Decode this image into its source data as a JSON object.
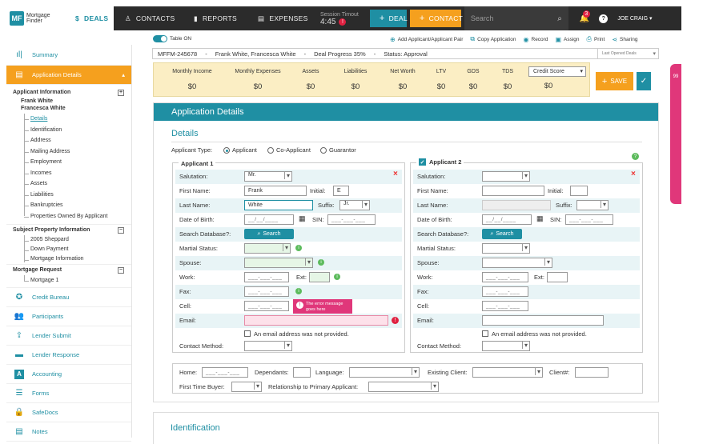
{
  "nav": {
    "brand_abbr": "MF",
    "brand_name_1": "Mortgage",
    "brand_name_2": "Finder",
    "tabs": [
      {
        "label": "DEALS",
        "icon": "dollar-icon"
      },
      {
        "label": "CONTACTS",
        "icon": "person-icon"
      },
      {
        "label": "REPORTS",
        "icon": "bar-chart-icon"
      },
      {
        "label": "EXPENSES",
        "icon": "document-icon"
      }
    ],
    "session_label": "Session Timout",
    "session_time": "4:45",
    "session_alert": "!",
    "deal_button": "DEAL",
    "contact_button": "CONTACT",
    "search_placeholder": "Search",
    "notif_count": "3",
    "user_name": "JOE CRAIG",
    "accent": "#1f8fa3",
    "orange": "#f5a01e"
  },
  "toolbar": {
    "table_label": "Table ON",
    "actions": [
      {
        "label": "Add Applicant/Applicant Pair",
        "icon": "add-person-icon"
      },
      {
        "label": "Copy Application",
        "icon": "copy-icon"
      },
      {
        "label": "Record",
        "icon": "record-icon"
      },
      {
        "label": "Assign",
        "icon": "assign-icon"
      },
      {
        "label": "Print",
        "icon": "print-icon"
      },
      {
        "label": "Sharing",
        "icon": "share-icon"
      }
    ]
  },
  "deal": {
    "id": "MFFM-245678",
    "sep": "-",
    "names": "Frank White, Francesca White",
    "progress": "Deal Progress 35%",
    "status": "Status: Approval",
    "last_opened": "Last Opened Deals"
  },
  "metrics": {
    "items": [
      {
        "label": "Monthly Income",
        "value": "$0"
      },
      {
        "label": "Monthly Expenses",
        "value": "$0"
      },
      {
        "label": "Assets",
        "value": "$0"
      },
      {
        "label": "Liabilities",
        "value": "$0"
      },
      {
        "label": "Net Worth",
        "value": "$0"
      },
      {
        "label": "LTV",
        "value": "$0"
      },
      {
        "label": "GDS",
        "value": "$0"
      },
      {
        "label": "TDS",
        "value": "$0"
      },
      {
        "label": "Credit Score",
        "value": "$0"
      }
    ],
    "save": "SAVE",
    "side_tab": "99"
  },
  "sidebar": {
    "summary": "Summary",
    "app_details": "Application Details",
    "applicant_info": "Applicant Information",
    "applicant_names_1": "Frank White",
    "applicant_names_2": "Francesca White",
    "applicant_subs": [
      "Details",
      "Identification",
      "Address",
      "Mailing Address",
      "Employment",
      "Incomes",
      "Assets",
      "Liabilities",
      "Bankruptcies",
      "Properties Owned By Applicant"
    ],
    "subject_property": "Subject Property Information",
    "property_subs": [
      "2005 Sheppard",
      "Down Payment",
      "Mortgage Information"
    ],
    "mortgage_request": "Mortgage Request",
    "mortgage_subs": [
      "Mortgage 1"
    ],
    "items": [
      {
        "label": "Credit Bureau",
        "icon": "star-icon"
      },
      {
        "label": "Participants",
        "icon": "people-icon"
      },
      {
        "label": "Lender Submit",
        "icon": "upload-icon"
      },
      {
        "label": "Lender Response",
        "icon": "chat-icon"
      },
      {
        "label": "Accounting",
        "icon": "accounting-icon"
      },
      {
        "label": "Forms",
        "icon": "list-icon"
      },
      {
        "label": "SafeDocs",
        "icon": "lock-icon"
      },
      {
        "label": "Notes",
        "icon": "notes-icon"
      }
    ]
  },
  "panel": {
    "title": "Application Details",
    "section": "Details",
    "applicant_type_label": "Applicant Type:",
    "types": [
      "Applicant",
      "Co-Applicant",
      "Guarantor"
    ],
    "a1": {
      "title": "Applicant 1",
      "salutation": "Mr.",
      "first": "Frank",
      "initial": "E",
      "last": "White",
      "suffix": "Jr.",
      "date_ph": "__/__/____",
      "sin_ph": "___-___-___",
      "search": "Search",
      "phone_ph": "___-___-___",
      "error": "The error message goes here",
      "email_check": "An email address was not provided."
    },
    "a2": {
      "title": "Applicant 2",
      "search": "Search",
      "email_check": "An email address was not provided."
    },
    "labels": {
      "salutation": "Salutation:",
      "first": "First Name:",
      "initial": "Initial:",
      "last": "Last Name:",
      "suffix": "Suffix:",
      "dob": "Date of Birth:",
      "sin": "SIN:",
      "search_db": "Search Database?:",
      "marital": "Martial Status:",
      "spouse": "Spouse:",
      "work": "Work:",
      "ext": "Ext:",
      "fax": "Fax:",
      "cell": "Cell:",
      "email": "Email:",
      "contact": "Contact Method:"
    },
    "bottom": {
      "home": "Home:",
      "dependants": "Dependants:",
      "language": "Language:",
      "existing": "Existing Client:",
      "client_no": "Client#:",
      "first_time": "First Time Buyer:",
      "relationship": "Relationship to Primary Applicant:"
    },
    "identification": "Identification"
  }
}
